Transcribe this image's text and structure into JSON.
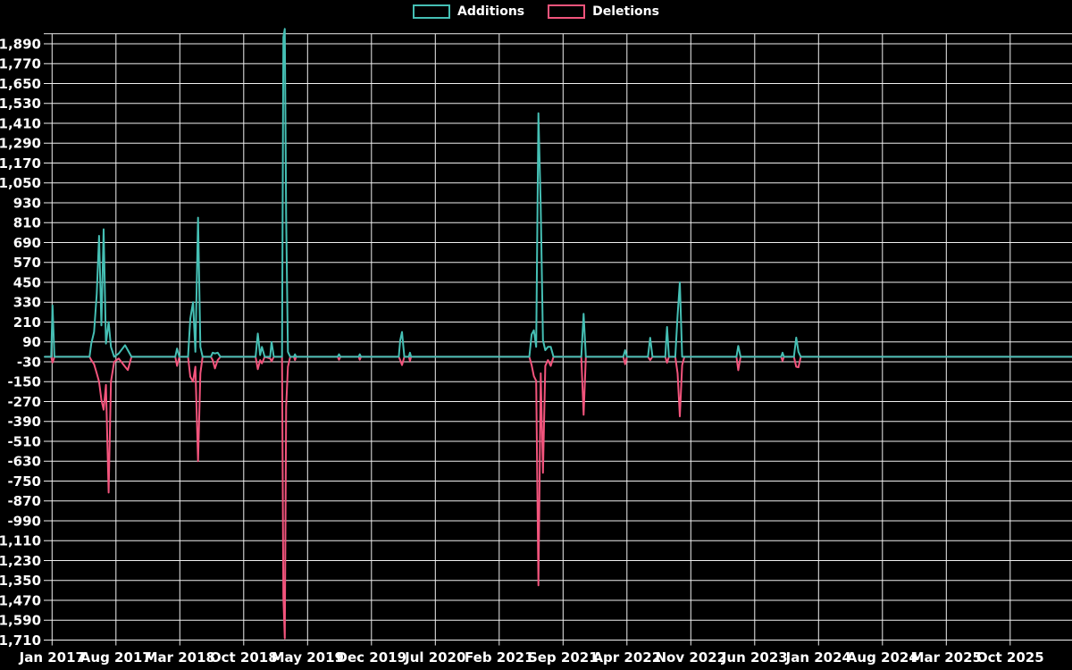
{
  "colors": {
    "background": "#000000",
    "grid": "#f0f0f0",
    "text": "#ffffff",
    "additions": "#45bfb4",
    "deletions": "#f2547c"
  },
  "legend": {
    "additions_label": "Additions",
    "deletions_label": "Deletions"
  },
  "chart_data": {
    "type": "line",
    "title": "",
    "xlabel": "",
    "ylabel": "",
    "legend_position": "top-center",
    "grid": true,
    "x_unit": "months since Jan 2017 (weekly git additions/deletions series)",
    "x_axis": {
      "tick_interval_months": 7,
      "tick_labels": [
        "Jan 2017",
        "Aug 2017",
        "Mar 2018",
        "Oct 2018",
        "May 2019",
        "Dec 2019",
        "Jul 2020",
        "Feb 2021",
        "Sep 2021",
        "Apr 2022",
        "Nov 2022",
        "Jun 2023",
        "Jan 2024",
        "Aug 2024",
        "Mar 2025",
        "Oct 2025"
      ]
    },
    "y_axis": {
      "min": -1710,
      "max": 1890,
      "step": 120,
      "top_boundary_value": 1950,
      "tick_labels": [
        "1,890",
        "1,770",
        "1,650",
        "1,530",
        "1,410",
        "1,290",
        "1,170",
        "1,050",
        "930",
        "810",
        "690",
        "570",
        "450",
        "330",
        "210",
        "90",
        "-30",
        "-150",
        "-270",
        "-390",
        "-510",
        "-630",
        "-750",
        "-870",
        "-990",
        "-1,110",
        "-1,230",
        "-1,350",
        "-1,470",
        "-1,590",
        "-1,710"
      ]
    },
    "x": [
      -0.8,
      -0.1,
      0.05,
      0.25,
      4.1,
      4.3,
      4.6,
      4.9,
      5.15,
      5.4,
      5.65,
      5.9,
      6.2,
      6.45,
      6.8,
      7.3,
      8.0,
      8.3,
      8.7,
      13.5,
      13.7,
      13.95,
      14.9,
      15.15,
      15.45,
      15.7,
      16.0,
      16.25,
      16.5,
      17.4,
      17.6,
      17.85,
      18.15,
      18.45,
      22.3,
      22.55,
      22.8,
      23.0,
      23.3,
      23.9,
      24.05,
      24.3,
      25.2,
      25.35,
      25.5,
      25.65,
      25.85,
      26.1,
      26.5,
      26.62,
      26.75,
      31.3,
      31.45,
      31.6,
      33.6,
      33.72,
      33.85,
      38.0,
      38.15,
      38.35,
      38.6,
      39.1,
      39.22,
      39.35,
      52.3,
      52.55,
      52.8,
      53.05,
      53.3,
      53.55,
      53.8,
      54.05,
      54.35,
      54.65,
      54.95,
      58.0,
      58.25,
      58.5,
      62.6,
      62.8,
      63.0,
      65.3,
      65.55,
      65.8,
      67.2,
      67.4,
      67.6,
      68.3,
      68.55,
      68.8,
      69.05,
      69.3,
      75.0,
      75.2,
      75.45,
      79.9,
      80.05,
      80.2,
      81.3,
      81.55,
      81.8,
      82.05,
      111.8
    ],
    "series": [
      {
        "name": "Additions",
        "color": "#45bfb4",
        "values": [
          0,
          0,
          310,
          0,
          0,
          80,
          150,
          380,
          730,
          190,
          770,
          80,
          210,
          60,
          0,
          20,
          70,
          40,
          0,
          0,
          50,
          0,
          0,
          230,
          330,
          30,
          840,
          60,
          0,
          0,
          25,
          20,
          25,
          0,
          0,
          140,
          10,
          60,
          0,
          0,
          90,
          0,
          0,
          1930,
          1980,
          850,
          30,
          0,
          0,
          15,
          0,
          0,
          15,
          0,
          0,
          15,
          0,
          0,
          100,
          150,
          0,
          0,
          25,
          0,
          0,
          135,
          160,
          60,
          1470,
          905,
          100,
          40,
          60,
          60,
          0,
          0,
          260,
          0,
          0,
          40,
          0,
          0,
          115,
          0,
          0,
          180,
          0,
          0,
          250,
          450,
          0,
          0,
          0,
          66,
          0,
          0,
          25,
          0,
          0,
          116,
          30,
          0,
          0
        ]
      },
      {
        "name": "Deletions",
        "color": "#f2547c",
        "values": [
          0,
          0,
          -35,
          0,
          0,
          -20,
          -45,
          -100,
          -150,
          -260,
          -320,
          -170,
          -820,
          -150,
          -30,
          -10,
          -60,
          -80,
          0,
          0,
          -55,
          0,
          0,
          -120,
          -150,
          -60,
          -630,
          -100,
          0,
          0,
          -20,
          -70,
          -20,
          0,
          0,
          -75,
          -20,
          -40,
          0,
          -10,
          -27,
          0,
          0,
          -1450,
          -1700,
          -300,
          -60,
          0,
          0,
          -20,
          0,
          0,
          -18,
          0,
          0,
          -18,
          0,
          0,
          -20,
          -50,
          0,
          0,
          -25,
          0,
          0,
          -50,
          -117,
          -145,
          -1380,
          -100,
          -700,
          -55,
          -20,
          -55,
          0,
          0,
          -350,
          0,
          0,
          -45,
          0,
          0,
          -20,
          0,
          0,
          -36,
          0,
          0,
          -100,
          -360,
          -50,
          0,
          0,
          -81,
          0,
          0,
          -25,
          0,
          0,
          -60,
          -63,
          0,
          0
        ]
      }
    ]
  }
}
